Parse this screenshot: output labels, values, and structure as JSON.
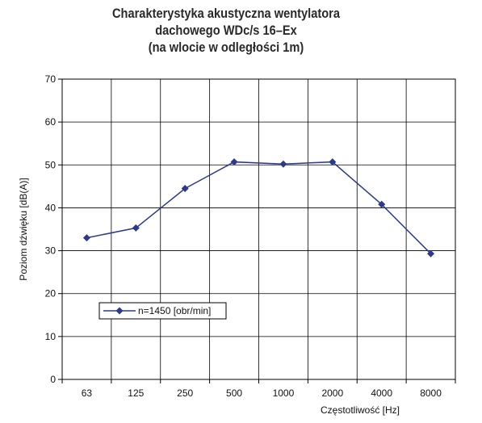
{
  "chart_data": {
    "type": "line",
    "title": [
      "Charakterystyka akustyczna wentylatora",
      "dachowego WDc/s 16–Ex",
      "(na wlocie w odległości 1m)"
    ],
    "xlabel": "Częstotliwość  [Hz]",
    "ylabel": "Poziom dźwięku [dB(A)]",
    "categories": [
      "63",
      "125",
      "250",
      "500",
      "1000",
      "2000",
      "4000",
      "8000"
    ],
    "ylim": [
      0,
      70
    ],
    "yticks": [
      "0",
      "10",
      "20",
      "30",
      "40",
      "50",
      "60",
      "70"
    ],
    "grid": true,
    "legend_position": "bottom-left",
    "series": [
      {
        "name": "n=1450 [obr/min]",
        "values": [
          33,
          35.3,
          44.5,
          50.7,
          50.2,
          50.7,
          40.8,
          29.3
        ],
        "color": "#2b3a8c"
      }
    ]
  }
}
